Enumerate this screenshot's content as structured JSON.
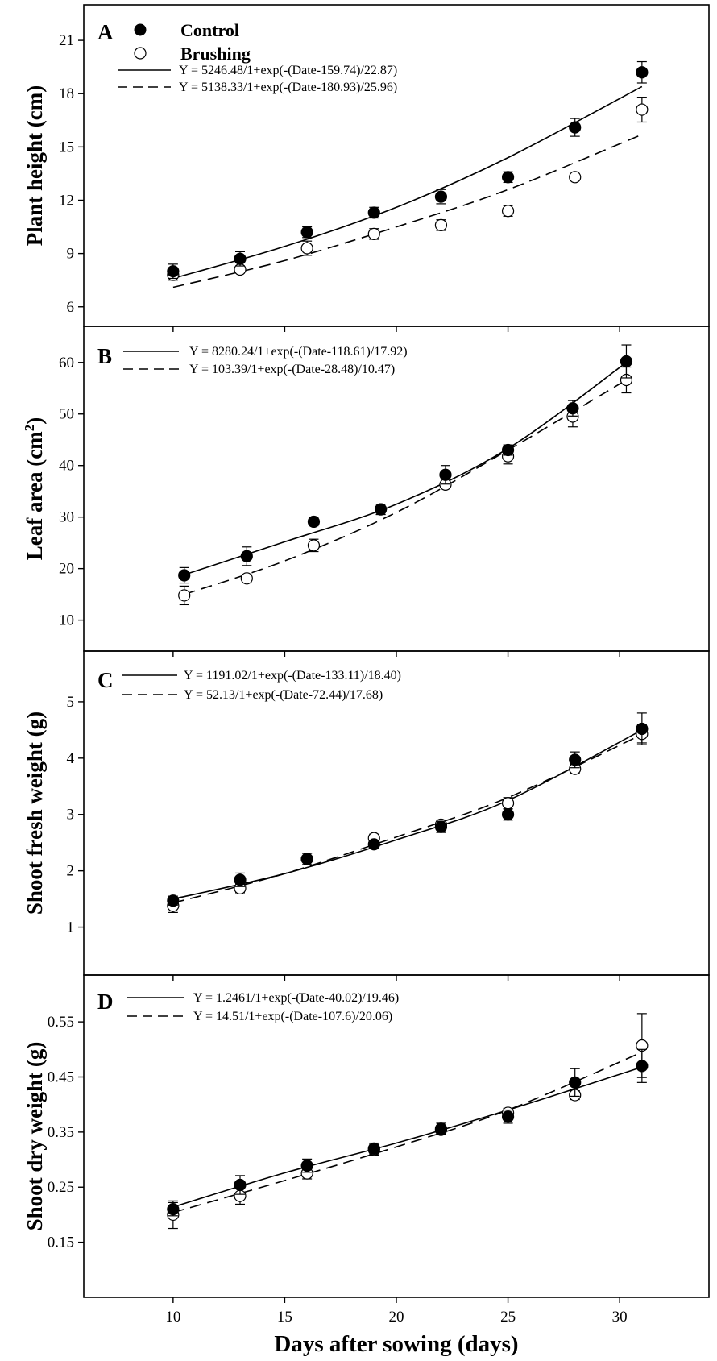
{
  "chart_data": {
    "type": "scatter",
    "x_label": "Days after sowing (days)",
    "x_ticks": [
      10,
      15,
      20,
      25,
      30
    ],
    "x_range": [
      6,
      34
    ],
    "series_names": [
      "Control",
      "Brushing"
    ],
    "panels": [
      {
        "letter": "A",
        "ylabel": "Plant height (cm)",
        "ylim": [
          4.9,
          23.0
        ],
        "yticks": [
          6,
          9,
          12,
          15,
          18,
          21
        ],
        "legend_markers": true,
        "fit_control": "Y = 5246.48/1+exp(-(Date-159.74)/22.87)",
        "fit_brushing": "Y = 5138.33/1+exp(-(Date-180.93)/25.96)",
        "control": {
          "x": [
            10,
            13,
            16,
            19,
            22,
            25,
            28,
            31
          ],
          "y": [
            8.0,
            8.7,
            10.2,
            11.3,
            12.2,
            13.3,
            16.1,
            19.2
          ],
          "err": [
            0.4,
            0.4,
            0.3,
            0.3,
            0.4,
            0.3,
            0.5,
            0.6
          ]
        },
        "brushing": {
          "x": [
            10,
            13,
            16,
            19,
            22,
            25,
            28,
            31
          ],
          "y": [
            7.8,
            8.1,
            9.3,
            10.1,
            10.6,
            11.4,
            13.3,
            17.1
          ],
          "err": [
            0.3,
            0.2,
            0.4,
            0.3,
            0.3,
            0.3,
            0.2,
            0.7
          ]
        },
        "curve_control": {
          "x": [
            10,
            15,
            20,
            25,
            31
          ],
          "y": [
            7.6,
            9.4,
            11.6,
            14.4,
            18.4
          ]
        },
        "curve_brushing": {
          "x": [
            10,
            15,
            20,
            25,
            31
          ],
          "y": [
            7.1,
            8.6,
            10.5,
            12.6,
            15.7
          ]
        }
      },
      {
        "letter": "B",
        "ylabel": "Leaf area (cm",
        "ylabel_sup": "2",
        "ylabel_tail": ")",
        "ylim": [
          4.0,
          67.0
        ],
        "yticks": [
          10,
          20,
          30,
          40,
          50,
          60
        ],
        "legend_markers": false,
        "fit_control": "Y = 8280.24/1+exp(-(Date-118.61)/17.92)",
        "fit_brushing": "Y = 103.39/1+exp(-(Date-28.48)/10.47)",
        "control": {
          "x": [
            10.5,
            13.3,
            16.3,
            19.3,
            22.2,
            25.0,
            27.9,
            30.3
          ],
          "y": [
            18.7,
            22.4,
            29.1,
            31.5,
            38.2,
            43.0,
            51.1,
            60.2
          ],
          "err": [
            1.5,
            1.8,
            0.8,
            1.0,
            1.8,
            1.0,
            1.5,
            3.2
          ]
        },
        "brushing": {
          "x": [
            10.5,
            13.3,
            16.3,
            19.3,
            22.2,
            25.0,
            27.9,
            30.3
          ],
          "y": [
            14.8,
            18.1,
            24.5,
            31.5,
            36.3,
            41.8,
            49.5,
            56.6
          ],
          "err": [
            1.8,
            0.8,
            1.2,
            1.0,
            0.8,
            1.5,
            2.0,
            2.5
          ]
        },
        "curve_control": {
          "x": [
            10.5,
            15,
            20,
            25,
            30.3
          ],
          "y": [
            18.8,
            25.2,
            32.5,
            43.3,
            60.0
          ]
        },
        "curve_brushing": {
          "x": [
            10.5,
            15,
            20,
            25,
            30.3
          ],
          "y": [
            15.0,
            21.5,
            30.9,
            43.0,
            56.6
          ]
        }
      },
      {
        "letter": "C",
        "ylabel": "Shoot fresh weight (g)",
        "ylim": [
          0.15,
          5.9
        ],
        "yticks": [
          1,
          2,
          3,
          4,
          5
        ],
        "legend_markers": false,
        "fit_control": "Y = 1191.02/1+exp(-(Date-133.11)/18.40)",
        "fit_brushing": "Y = 52.13/1+exp(-(Date-72.44)/17.68)",
        "control": {
          "x": [
            10,
            13,
            16,
            19,
            22,
            25,
            28,
            31
          ],
          "y": [
            1.47,
            1.84,
            2.21,
            2.47,
            2.78,
            3.0,
            3.97,
            4.52
          ],
          "err": [
            0.08,
            0.12,
            0.1,
            0.06,
            0.1,
            0.1,
            0.14,
            0.28
          ]
        },
        "brushing": {
          "x": [
            10,
            13,
            16,
            19,
            22,
            25,
            28,
            31
          ],
          "y": [
            1.38,
            1.69,
            2.21,
            2.58,
            2.82,
            3.2,
            3.81,
            4.43
          ],
          "err": [
            0.12,
            0.08,
            0.1,
            0.07,
            0.08,
            0.1,
            0.08,
            0.16
          ]
        },
        "curve_control": {
          "x": [
            10,
            15,
            20,
            25,
            31
          ],
          "y": [
            1.5,
            1.95,
            2.55,
            3.25,
            4.5
          ]
        },
        "curve_brushing": {
          "x": [
            10,
            15,
            20,
            25,
            31
          ],
          "y": [
            1.43,
            1.95,
            2.6,
            3.3,
            4.42
          ]
        }
      },
      {
        "letter": "D",
        "ylabel": "Shoot dry weight (g)",
        "ylim": [
          0.05,
          0.635
        ],
        "yticks": [
          0.15,
          0.25,
          0.35,
          0.45,
          0.55
        ],
        "legend_markers": false,
        "fit_control": "Y = 1.2461/1+exp(-(Date-40.02)/19.46)",
        "fit_brushing": "Y = 14.51/1+exp(-(Date-107.6)/20.06)",
        "control": {
          "x": [
            10,
            13,
            16,
            19,
            22,
            25,
            28,
            31
          ],
          "y": [
            0.21,
            0.254,
            0.289,
            0.32,
            0.356,
            0.378,
            0.44,
            0.47
          ],
          "err": [
            0.012,
            0.017,
            0.012,
            0.01,
            0.01,
            0.012,
            0.025,
            0.03
          ]
        },
        "brushing": {
          "x": [
            10,
            13,
            16,
            19,
            22,
            25,
            28,
            31
          ],
          "y": [
            0.2,
            0.234,
            0.275,
            0.318,
            0.354,
            0.385,
            0.417,
            0.507
          ],
          "err": [
            0.025,
            0.015,
            0.01,
            0.01,
            0.008,
            0.008,
            0.008,
            0.058
          ]
        },
        "curve_control": {
          "x": [
            10,
            15,
            20,
            25,
            31
          ],
          "y": [
            0.214,
            0.276,
            0.33,
            0.39,
            0.468
          ]
        },
        "curve_brushing": {
          "x": [
            10,
            15,
            20,
            25,
            31
          ],
          "y": [
            0.204,
            0.262,
            0.323,
            0.39,
            0.495
          ]
        }
      }
    ]
  }
}
